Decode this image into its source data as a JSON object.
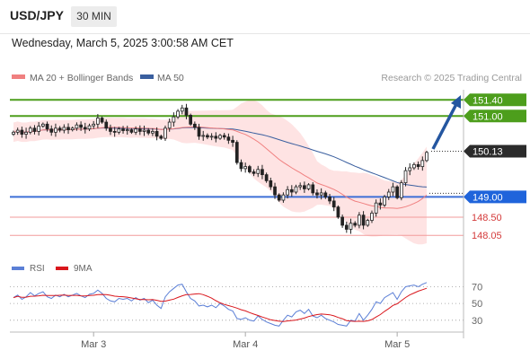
{
  "header": {
    "symbol": "USD/JPY",
    "timeframe": "30 MIN"
  },
  "datetime": "Wednesday, March 5, 2025 3:00:58 AM CET",
  "legend": {
    "ma20_label": "MA 20 + Bollinger Bands",
    "ma50_label": "MA 50",
    "credit": "Research © 2025 Trading Central",
    "colors": {
      "ma20": "#f08080",
      "ma50": "#3a5f9f",
      "band": "#fdd9d9"
    }
  },
  "chart_data": {
    "type": "candlestick",
    "price_ylim": [
      147.7,
      151.65
    ],
    "x_ticks": [
      {
        "label": "Mar 3",
        "index": 19
      },
      {
        "label": "Mar 4",
        "index": 55
      },
      {
        "label": "Mar 5",
        "index": 91
      }
    ],
    "closes": [
      150.6,
      150.65,
      150.55,
      150.6,
      150.7,
      150.62,
      150.75,
      150.8,
      150.68,
      150.6,
      150.7,
      150.65,
      150.72,
      150.66,
      150.7,
      150.78,
      150.72,
      150.68,
      150.76,
      150.8,
      150.95,
      150.85,
      150.7,
      150.62,
      150.6,
      150.68,
      150.64,
      150.66,
      150.6,
      150.68,
      150.62,
      150.65,
      150.58,
      150.62,
      150.5,
      150.45,
      150.7,
      150.85,
      150.98,
      151.12,
      151.2,
      151.02,
      150.8,
      150.72,
      150.5,
      150.52,
      150.48,
      150.5,
      150.45,
      150.52,
      150.48,
      150.4,
      150.35,
      149.85,
      149.7,
      149.75,
      149.62,
      149.58,
      149.68,
      149.55,
      149.4,
      149.25,
      149.05,
      148.92,
      149.05,
      149.18,
      149.12,
      149.25,
      149.28,
      149.2,
      149.3,
      149.1,
      149.05,
      149.1,
      149.0,
      148.9,
      148.75,
      148.5,
      148.3,
      148.2,
      148.35,
      148.3,
      148.55,
      148.3,
      148.42,
      148.6,
      148.85,
      148.8,
      149.0,
      149.12,
      149.25,
      148.98,
      149.35,
      149.65,
      149.72,
      149.8,
      149.75,
      149.9,
      150.1
    ],
    "price_levels": [
      {
        "label": "151.40",
        "value": 151.4,
        "kind": "resistance"
      },
      {
        "label": "151.00",
        "value": 151.0,
        "kind": "resistance"
      },
      {
        "label": "150.13",
        "value": 150.13,
        "kind": "current"
      },
      {
        "label": "149.00",
        "value": 149.0,
        "kind": "pivot"
      },
      {
        "label": "148.50",
        "value": 148.5,
        "kind": "support"
      },
      {
        "label": "148.05",
        "value": 148.05,
        "kind": "support"
      }
    ],
    "rsi": {
      "labels": [
        "RSI",
        "9MA"
      ],
      "ticks": [
        70,
        50,
        30
      ],
      "ylim": [
        18,
        78
      ],
      "colors": {
        "rsi": "#5b7fd6",
        "ma9": "#d9161c"
      },
      "values": [
        57,
        60,
        55,
        58,
        63,
        59,
        62,
        64,
        58,
        56,
        60,
        58,
        61,
        58,
        60,
        62,
        59,
        57,
        61,
        62,
        66,
        62,
        56,
        53,
        52,
        56,
        55,
        56,
        53,
        57,
        54,
        56,
        51,
        54,
        48,
        44,
        58,
        64,
        68,
        72,
        73,
        64,
        56,
        53,
        47,
        48,
        46,
        48,
        45,
        50,
        47,
        43,
        41,
        32,
        31,
        33,
        30,
        29,
        35,
        31,
        28,
        26,
        24,
        23,
        30,
        36,
        34,
        40,
        42,
        38,
        43,
        35,
        33,
        36,
        32,
        30,
        28,
        25,
        24,
        23,
        30,
        29,
        38,
        30,
        36,
        43,
        52,
        50,
        57,
        60,
        63,
        55,
        64,
        70,
        71,
        72,
        70,
        73,
        75
      ]
    }
  }
}
